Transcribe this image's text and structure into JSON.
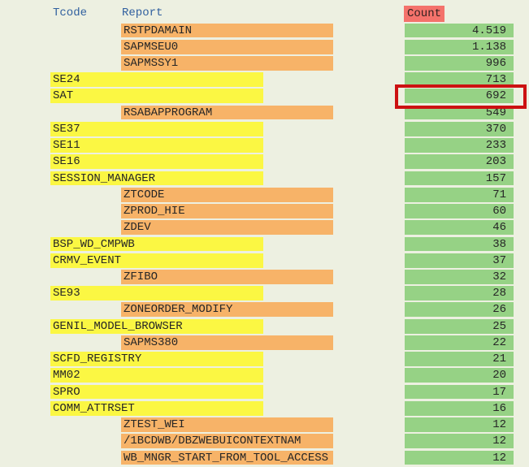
{
  "table": {
    "columns": [
      {
        "key": "tcode",
        "label": "Tcode"
      },
      {
        "key": "report",
        "label": "Report"
      },
      {
        "key": "count",
        "label": "Count"
      }
    ],
    "rows": [
      {
        "tcode": "",
        "report": "RSTPDAMAIN",
        "count": "4.519",
        "highlighted": false
      },
      {
        "tcode": "",
        "report": "SAPMSEU0",
        "count": "1.138",
        "highlighted": false
      },
      {
        "tcode": "",
        "report": "SAPMSSY1",
        "count": "996",
        "highlighted": false
      },
      {
        "tcode": "SE24",
        "report": "",
        "count": "713",
        "highlighted": false
      },
      {
        "tcode": "SAT",
        "report": "",
        "count": "692",
        "highlighted": true
      },
      {
        "tcode": "",
        "report": "RSABAPPROGRAM",
        "count": "549",
        "highlighted": false
      },
      {
        "tcode": "SE37",
        "report": "",
        "count": "370",
        "highlighted": false
      },
      {
        "tcode": "SE11",
        "report": "",
        "count": "233",
        "highlighted": false
      },
      {
        "tcode": "SE16",
        "report": "",
        "count": "203",
        "highlighted": false
      },
      {
        "tcode": "SESSION_MANAGER",
        "report": "",
        "count": "157",
        "highlighted": false
      },
      {
        "tcode": "",
        "report": "ZTCODE",
        "count": "71",
        "highlighted": false
      },
      {
        "tcode": "",
        "report": "ZPROD_HIE",
        "count": "60",
        "highlighted": false
      },
      {
        "tcode": "",
        "report": "ZDEV",
        "count": "46",
        "highlighted": false
      },
      {
        "tcode": "BSP_WD_CMPWB",
        "report": "",
        "count": "38",
        "highlighted": false
      },
      {
        "tcode": "CRMV_EVENT",
        "report": "",
        "count": "37",
        "highlighted": false
      },
      {
        "tcode": "",
        "report": "ZFIBO",
        "count": "32",
        "highlighted": false
      },
      {
        "tcode": "SE93",
        "report": "",
        "count": "28",
        "highlighted": false
      },
      {
        "tcode": "",
        "report": "ZONEORDER_MODIFY",
        "count": "26",
        "highlighted": false
      },
      {
        "tcode": "GENIL_MODEL_BROWSER",
        "report": "",
        "count": "25",
        "highlighted": false
      },
      {
        "tcode": "",
        "report": "SAPMS380",
        "count": "22",
        "highlighted": false
      },
      {
        "tcode": "SCFD_REGISTRY",
        "report": "",
        "count": "21",
        "highlighted": false
      },
      {
        "tcode": "MM02",
        "report": "",
        "count": "20",
        "highlighted": false
      },
      {
        "tcode": "SPRO",
        "report": "",
        "count": "17",
        "highlighted": false
      },
      {
        "tcode": "COMM_ATTRSET",
        "report": "",
        "count": "16",
        "highlighted": false
      },
      {
        "tcode": "",
        "report": "ZTEST_WEI",
        "count": "12",
        "highlighted": false
      },
      {
        "tcode": "",
        "report": "/1BCDWB/DBZWEBUICONTEXTNAM",
        "count": "12",
        "highlighted": false
      },
      {
        "tcode": "",
        "report": "WB_MNGR_START_FROM_TOOL_ACCESS",
        "count": "12",
        "highlighted": false
      }
    ]
  },
  "colors": {
    "page_bg": "#edf0e1",
    "tcode_bar": "#fbf743",
    "report_bar": "#f7b368",
    "count_cell": "#96d285",
    "count_header_bg": "#f4726b",
    "count_header_text": "#33201f",
    "header_text": "#31609f",
    "cell_text": "#262626",
    "highlight_border": "#cc1111"
  }
}
